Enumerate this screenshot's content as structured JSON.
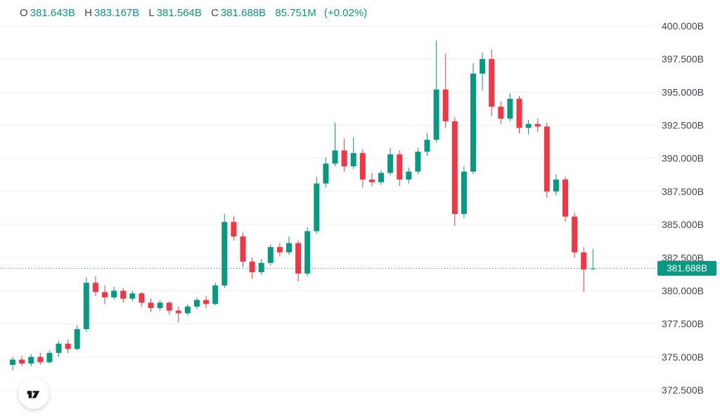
{
  "header": {
    "ohlc": {
      "o_label": "O",
      "o_value": "381.643B",
      "h_label": "H",
      "h_value": "383.167B",
      "l_label": "L",
      "l_value": "381.564B",
      "c_label": "C",
      "c_value": "381.688B"
    },
    "volume": "85.751M",
    "change": "(+0.02%)"
  },
  "price_label": {
    "value": "381.688B",
    "price": 381.688
  },
  "colors": {
    "up": "#089981",
    "down": "#f23645",
    "grid": "#eef0f3",
    "axis_text": "#42464d",
    "badge_bg": "#089981",
    "badge_text": "#ffffff",
    "background": "#ffffff"
  },
  "chart_data": {
    "type": "candlestick",
    "title": "",
    "xlabel": "",
    "ylabel": "",
    "grid": true,
    "legend": false,
    "ylim": [
      370.5,
      402.0
    ],
    "y_axis": {
      "ticks": [
        "400.000B",
        "397.500B",
        "395.000B",
        "392.500B",
        "390.000B",
        "387.500B",
        "385.000B",
        "382.500B",
        "380.000B",
        "377.500B",
        "375.000B",
        "372.500B"
      ],
      "values": [
        400.0,
        397.5,
        395.0,
        392.5,
        390.0,
        387.5,
        385.0,
        382.5,
        380.0,
        377.5,
        375.0,
        372.5
      ]
    },
    "last_price": 381.688,
    "up_color": "#089981",
    "down_color": "#f23645",
    "candles": [
      [
        374.4,
        375.0,
        374.0,
        374.8
      ],
      [
        374.8,
        375.1,
        374.3,
        374.5
      ],
      [
        374.5,
        375.2,
        374.3,
        375.0
      ],
      [
        375.0,
        375.3,
        374.4,
        374.6
      ],
      [
        374.6,
        375.5,
        374.5,
        375.3
      ],
      [
        375.3,
        376.2,
        375.0,
        376.0
      ],
      [
        376.0,
        376.3,
        375.3,
        375.6
      ],
      [
        375.6,
        377.4,
        375.5,
        377.1
      ],
      [
        377.1,
        381.0,
        376.9,
        380.6
      ],
      [
        380.6,
        381.1,
        379.6,
        379.9
      ],
      [
        379.9,
        380.4,
        379.0,
        379.5
      ],
      [
        379.5,
        380.3,
        379.3,
        380.0
      ],
      [
        380.0,
        380.2,
        379.1,
        379.4
      ],
      [
        379.4,
        380.0,
        379.2,
        379.8
      ],
      [
        379.8,
        379.9,
        378.8,
        379.1
      ],
      [
        379.1,
        379.4,
        378.4,
        378.7
      ],
      [
        378.7,
        379.3,
        378.5,
        379.1
      ],
      [
        379.1,
        379.2,
        378.2,
        378.5
      ],
      [
        378.5,
        378.8,
        377.6,
        378.3
      ],
      [
        378.3,
        379.0,
        378.1,
        378.8
      ],
      [
        378.8,
        379.5,
        378.6,
        379.3
      ],
      [
        379.3,
        379.6,
        378.7,
        379.0
      ],
      [
        379.0,
        380.6,
        378.9,
        380.4
      ],
      [
        380.4,
        385.8,
        380.2,
        385.2
      ],
      [
        385.2,
        385.6,
        383.8,
        384.1
      ],
      [
        384.1,
        384.4,
        381.8,
        382.2
      ],
      [
        382.2,
        382.5,
        380.9,
        381.4
      ],
      [
        381.4,
        382.4,
        381.2,
        382.1
      ],
      [
        382.1,
        383.5,
        381.9,
        383.3
      ],
      [
        383.3,
        383.6,
        382.6,
        382.9
      ],
      [
        382.9,
        384.1,
        382.7,
        383.6
      ],
      [
        383.6,
        383.8,
        380.7,
        381.3
      ],
      [
        381.3,
        384.8,
        381.1,
        384.5
      ],
      [
        384.5,
        388.6,
        384.3,
        388.1
      ],
      [
        388.1,
        390.1,
        387.8,
        389.6
      ],
      [
        389.6,
        392.7,
        389.4,
        390.6
      ],
      [
        390.6,
        391.5,
        389.0,
        389.4
      ],
      [
        389.4,
        391.6,
        389.2,
        390.4
      ],
      [
        390.4,
        390.7,
        387.8,
        388.4
      ],
      [
        388.4,
        388.9,
        387.9,
        388.2
      ],
      [
        388.2,
        389.1,
        388.0,
        388.9
      ],
      [
        388.9,
        390.8,
        388.7,
        390.3
      ],
      [
        390.3,
        390.6,
        387.9,
        388.4
      ],
      [
        388.4,
        389.3,
        388.1,
        389.0
      ],
      [
        389.0,
        390.8,
        388.8,
        390.5
      ],
      [
        390.5,
        391.9,
        390.2,
        391.4
      ],
      [
        391.4,
        398.9,
        391.2,
        395.2
      ],
      [
        395.2,
        397.9,
        392.3,
        392.8
      ],
      [
        392.8,
        393.1,
        384.9,
        385.8
      ],
      [
        385.8,
        389.4,
        385.5,
        389.0
      ],
      [
        389.0,
        397.2,
        388.8,
        396.4
      ],
      [
        396.4,
        398.0,
        395.1,
        397.5
      ],
      [
        397.5,
        398.2,
        393.2,
        393.9
      ],
      [
        393.9,
        394.3,
        392.6,
        393.0
      ],
      [
        393.0,
        394.9,
        392.8,
        394.5
      ],
      [
        394.5,
        394.7,
        391.9,
        392.3
      ],
      [
        392.3,
        392.9,
        391.8,
        392.6
      ],
      [
        392.6,
        393.0,
        392.0,
        392.4
      ],
      [
        392.4,
        392.7,
        387.0,
        387.5
      ],
      [
        387.5,
        388.8,
        387.2,
        388.4
      ],
      [
        388.4,
        388.6,
        385.2,
        385.6
      ],
      [
        385.6,
        385.9,
        382.5,
        382.9
      ],
      [
        382.9,
        383.3,
        379.9,
        381.6
      ],
      [
        381.643,
        383.167,
        381.564,
        381.688
      ]
    ]
  }
}
